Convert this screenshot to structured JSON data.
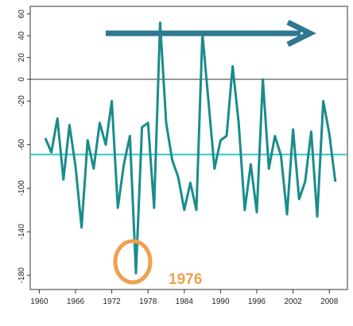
{
  "chart_data": {
    "type": "line",
    "annotation": "1976",
    "x": [
      1961,
      1962,
      1963,
      1964,
      1965,
      1966,
      1967,
      1968,
      1969,
      1970,
      1971,
      1972,
      1973,
      1974,
      1975,
      1976,
      1977,
      1978,
      1979,
      1980,
      1981,
      1982,
      1983,
      1984,
      1985,
      1986,
      1987,
      1988,
      1989,
      1990,
      1991,
      1992,
      1993,
      1994,
      1995,
      1996,
      1997,
      1998,
      1999,
      2000,
      2001,
      2002,
      2003,
      2004,
      2005,
      2006,
      2007,
      2008,
      2009
    ],
    "values": [
      -54,
      -67,
      -36,
      -92,
      -42,
      -80,
      -136,
      -56,
      -82,
      -40,
      -60,
      -20,
      -118,
      -78,
      -52,
      -178,
      -44,
      -40,
      -118,
      52,
      -40,
      -74,
      -90,
      -120,
      -95,
      -120,
      42,
      -20,
      -82,
      -56,
      -52,
      12,
      -40,
      -120,
      -78,
      -122,
      0,
      -82,
      -52,
      -70,
      -124,
      -46,
      -110,
      -94,
      -48,
      -126,
      -20,
      -50,
      -94
    ],
    "color": "#1a8c8c",
    "xlim": [
      1958.5,
      2011
    ],
    "xticks": [
      1960,
      1966,
      1972,
      1978,
      1984,
      1990,
      1996,
      2002,
      2008
    ],
    "ylim": [
      -193,
      67
    ],
    "yticks": [
      60,
      40,
      20,
      0,
      -20,
      -60,
      -100,
      -140,
      -180
    ],
    "hlines": [
      {
        "value": 0,
        "color": "#333333"
      },
      {
        "value": -69,
        "color": "#33c6cc"
      }
    ]
  }
}
